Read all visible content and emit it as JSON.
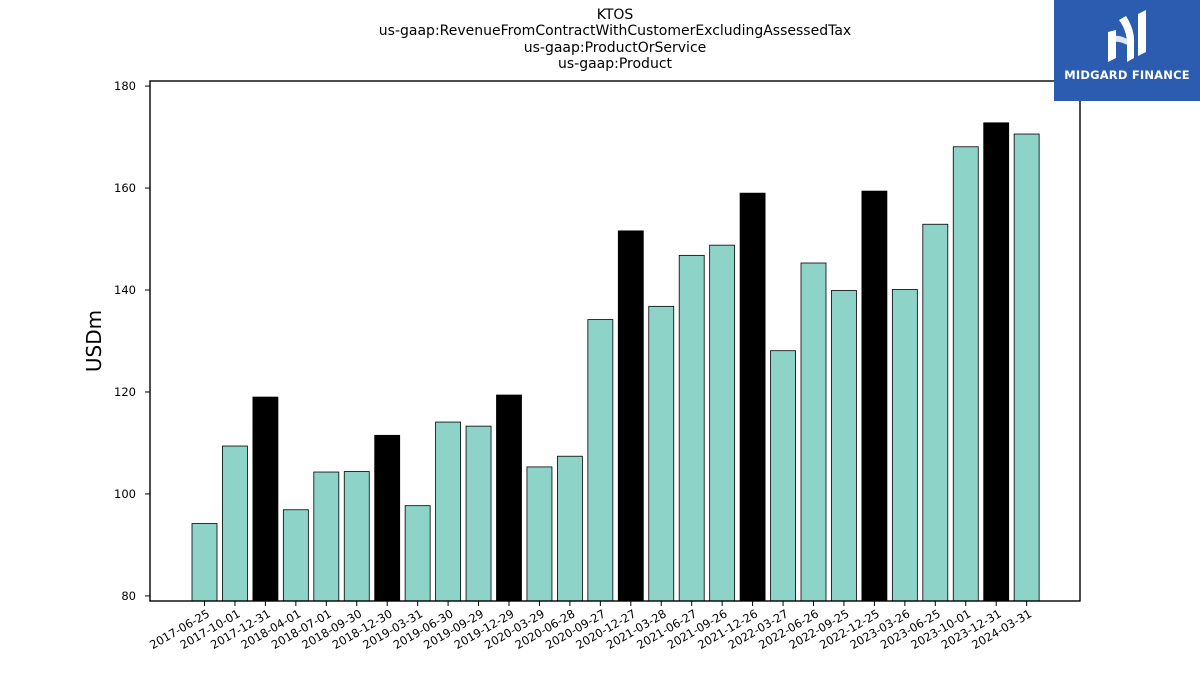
{
  "header": {
    "lines": [
      "KTOS",
      "us-gaap:RevenueFromContractWithCustomerExcludingAssessedTax",
      "us-gaap:ProductOrService",
      "us-gaap:Product"
    ]
  },
  "logo": {
    "text": "MIDGARD FINANCE",
    "color": "#2b5caf"
  },
  "chart_data": {
    "type": "bar",
    "title": "KTOS\nus-gaap:RevenueFromContractWithCustomerExcludingAssessedTax\nus-gaap:ProductOrService\nus-gaap:Product",
    "xlabel": "",
    "ylabel": "USDm",
    "ylim": [
      79,
      181
    ],
    "yticks": [
      80,
      100,
      120,
      140,
      160,
      180
    ],
    "grid": false,
    "colors": {
      "quarter": "#8dd3c7",
      "fiscal_year_end": "#000000",
      "edge": "#000000"
    },
    "categories": [
      "2017-06-25",
      "2017-10-01",
      "2017-12-31",
      "2018-04-01",
      "2018-07-01",
      "2018-09-30",
      "2018-12-30",
      "2019-03-31",
      "2019-06-30",
      "2019-09-29",
      "2019-12-29",
      "2020-03-29",
      "2020-06-28",
      "2020-09-27",
      "2020-12-27",
      "2021-03-28",
      "2021-06-27",
      "2021-09-26",
      "2021-12-26",
      "2022-03-27",
      "2022-06-26",
      "2022-09-25",
      "2022-12-25",
      "2023-03-26",
      "2023-06-25",
      "2023-10-01",
      "2023-12-31",
      "2024-03-31"
    ],
    "values": [
      94.2,
      109.4,
      119.0,
      96.9,
      104.3,
      104.4,
      111.5,
      97.7,
      114.1,
      113.3,
      119.4,
      105.3,
      107.4,
      134.2,
      151.6,
      136.8,
      146.8,
      148.8,
      159.0,
      128.1,
      145.3,
      139.9,
      159.4,
      140.1,
      152.9,
      168.1,
      172.8,
      170.6
    ],
    "highlight": [
      false,
      false,
      true,
      false,
      false,
      false,
      true,
      false,
      false,
      false,
      true,
      false,
      false,
      false,
      true,
      false,
      false,
      false,
      true,
      false,
      false,
      false,
      true,
      false,
      false,
      false,
      true,
      false
    ]
  }
}
